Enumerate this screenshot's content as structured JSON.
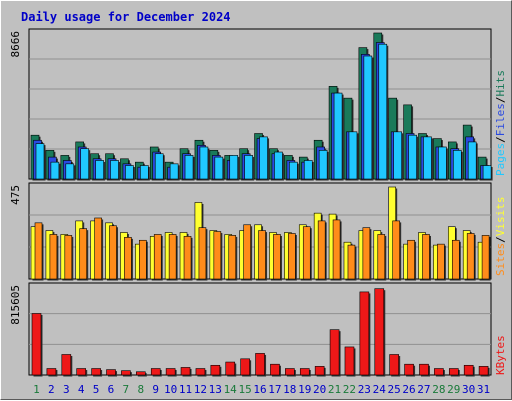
{
  "chart_data": {
    "type": "bar",
    "title": "Daily usage for December 2024",
    "days": [
      "1",
      "2",
      "3",
      "4",
      "5",
      "6",
      "7",
      "8",
      "9",
      "10",
      "11",
      "12",
      "13",
      "14",
      "15",
      "16",
      "17",
      "18",
      "19",
      "20",
      "21",
      "22",
      "23",
      "24",
      "25",
      "26",
      "27",
      "28",
      "29",
      "30",
      "31"
    ],
    "weekend_days": [
      "1",
      "7",
      "8",
      "14",
      "15",
      "21",
      "22",
      "28",
      "29"
    ],
    "colors": {
      "hits": "#1a7a5a",
      "files": "#2a4ae0",
      "pages": "#20c8ff",
      "visits": "#ffff30",
      "sites": "#ff8c1a",
      "kbytes": "#ee1818",
      "title": "#0000c8",
      "weekend_day": "#1a7a3a",
      "weekday_day": "#0000c8",
      "panel_bg": "#c0c0c0",
      "grid": "#909090"
    },
    "panels": [
      {
        "name": "hits-files-pages",
        "max_label": "8666",
        "ylim": [
          0,
          8666
        ],
        "legend": [
          {
            "text": "Pages",
            "color": "#20c8ff"
          },
          {
            "text": "Files",
            "color": "#2a4ae0"
          },
          {
            "text": "Hits",
            "color": "#1a7a5a"
          }
        ],
        "separator": "/",
        "series": [
          {
            "name": "Hits",
            "color": "#1a7a5a",
            "values": [
              2600,
              1700,
              1400,
              2200,
              1500,
              1500,
              1200,
              1000,
              1900,
              1000,
              1800,
              2300,
              1700,
              1400,
              1800,
              2700,
              1800,
              1400,
              1300,
              2300,
              5500,
              4800,
              7800,
              8666,
              4800,
              4400,
              2700,
              2400,
              2200,
              3200,
              1300
            ]
          },
          {
            "name": "Files",
            "color": "#2a4ae0",
            "values": [
              2300,
              1300,
              1100,
              1900,
              1200,
              1200,
              900,
              700,
              1600,
              700,
              1500,
              2000,
              1400,
              1100,
              1500,
              2400,
              1500,
              1100,
              1000,
              1900,
              5100,
              2800,
              7400,
              8100,
              2800,
              2700,
              2500,
              1900,
              1800,
              2500,
              800
            ]
          },
          {
            "name": "Pages",
            "color": "#20c8ff",
            "values": [
              2100,
              1000,
              900,
              1800,
              1100,
              1100,
              800,
              800,
              1500,
              900,
              1400,
              1900,
              1300,
              1400,
              1400,
              2500,
              1600,
              1000,
              1100,
              1700,
              5100,
              2800,
              7300,
              8000,
              2800,
              2600,
              2500,
              1900,
              1700,
              2200,
              800
            ]
          }
        ]
      },
      {
        "name": "visits-sites",
        "max_label": "475",
        "ylim": [
          0,
          475
        ],
        "legend": [
          {
            "text": "Sites",
            "color": "#ff8c1a"
          },
          {
            "text": "Visits",
            "color": "#ffff30"
          }
        ],
        "separator": "/",
        "series": [
          {
            "name": "Visits",
            "color": "#ffff30",
            "values": [
              270,
              250,
              230,
              300,
              300,
              290,
              240,
              180,
              220,
              240,
              240,
              395,
              250,
              230,
              250,
              280,
              240,
              240,
              280,
              340,
              335,
              190,
              250,
              250,
              475,
              180,
              240,
              175,
              270,
              250,
              190
            ]
          },
          {
            "name": "Sites",
            "color": "#ff8c1a",
            "values": [
              290,
              230,
              225,
              260,
              315,
              275,
              215,
              200,
              230,
              230,
              220,
              265,
              245,
              225,
              280,
              250,
              230,
              235,
              270,
              300,
              305,
              175,
              265,
              230,
              300,
              200,
              230,
              180,
              200,
              235,
              225
            ]
          }
        ]
      },
      {
        "name": "kbytes",
        "max_label": "815605",
        "ylim": [
          0,
          815605
        ],
        "legend": [
          {
            "text": "KBytes",
            "color": "#ee1818"
          }
        ],
        "separator": "",
        "series": [
          {
            "name": "KBytes",
            "color": "#ee1818",
            "values": [
              570000,
              60000,
              190000,
              60000,
              60000,
              50000,
              40000,
              30000,
              60000,
              60000,
              70000,
              60000,
              90000,
              120000,
              150000,
              200000,
              100000,
              60000,
              60000,
              80000,
              420000,
              260000,
              770000,
              800000,
              190000,
              100000,
              100000,
              60000,
              60000,
              90000,
              80000
            ]
          }
        ]
      }
    ]
  }
}
